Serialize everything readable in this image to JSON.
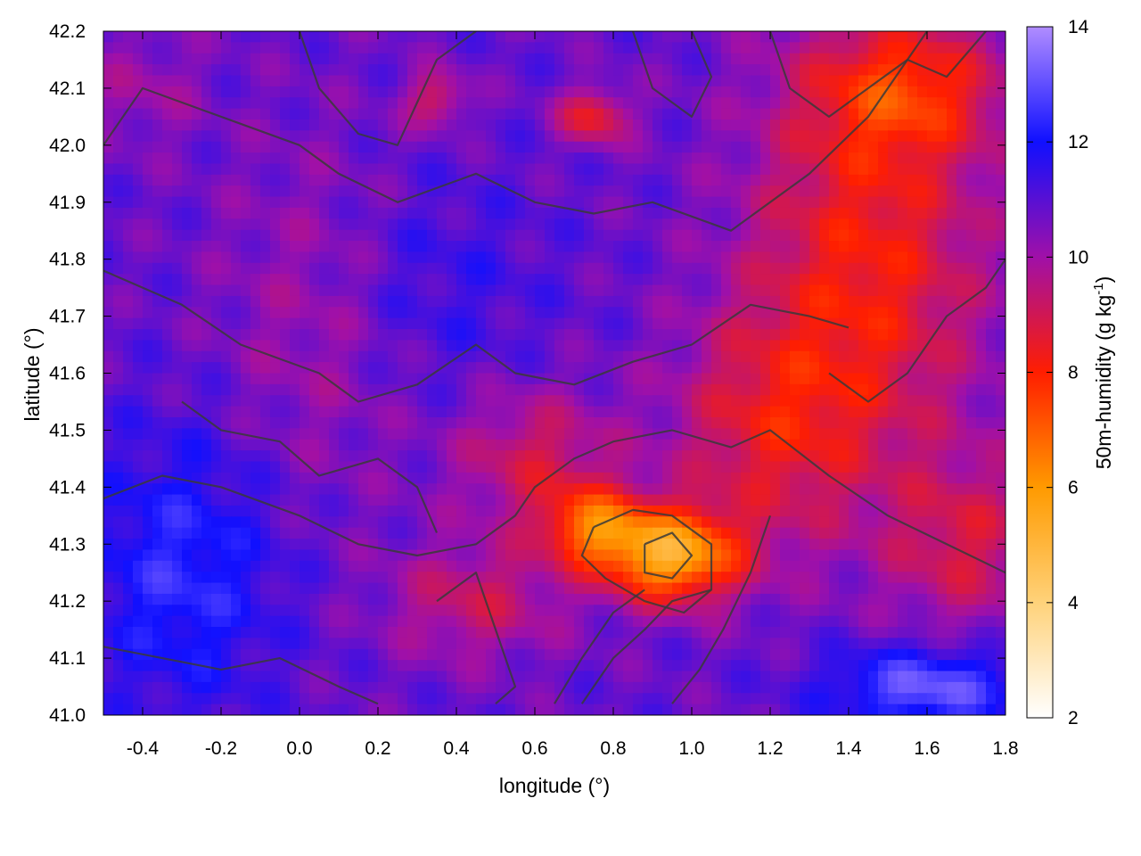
{
  "chart_data": {
    "type": "heatmap",
    "title": "",
    "xlabel": "longitude (°)",
    "ylabel": "latitude (°)",
    "xlim": [
      -0.5,
      1.8
    ],
    "ylim": [
      41.0,
      42.2
    ],
    "x_ticks": [
      -0.4,
      -0.2,
      0.0,
      0.2,
      0.4,
      0.6,
      0.8,
      1.0,
      1.2,
      1.4,
      1.6,
      1.8
    ],
    "x_tick_labels": [
      "-0.4",
      "-0.2",
      "0.0",
      "0.2",
      "0.4",
      "0.6",
      "0.8",
      "1.0",
      "1.2",
      "1.4",
      "1.6",
      "1.8"
    ],
    "y_ticks": [
      41.0,
      41.1,
      41.2,
      41.3,
      41.4,
      41.5,
      41.6,
      41.7,
      41.8,
      41.9,
      42.0,
      42.1,
      42.2
    ],
    "y_tick_labels": [
      "41.0",
      "41.1",
      "41.2",
      "41.3",
      "41.4",
      "41.5",
      "41.6",
      "41.7",
      "41.8",
      "41.9",
      "42.0",
      "42.1",
      "42.2"
    ],
    "colorbar": {
      "label_parts": [
        "50m-humidity (g kg",
        "-1",
        ")"
      ],
      "range": [
        2,
        14
      ],
      "ticks": [
        2,
        4,
        6,
        8,
        10,
        12,
        14
      ],
      "tick_labels": [
        "2",
        "4",
        "6",
        "8",
        "10",
        "12",
        "14"
      ],
      "palette": [
        {
          "v": 2,
          "color": "#ffffff"
        },
        {
          "v": 4,
          "color": "#ffd27a"
        },
        {
          "v": 6,
          "color": "#ff9a00"
        },
        {
          "v": 8,
          "color": "#ff1e00"
        },
        {
          "v": 10,
          "color": "#a010a8"
        },
        {
          "v": 12,
          "color": "#1010ff"
        },
        {
          "v": 14,
          "color": "#b08cff"
        }
      ]
    },
    "grid": false,
    "humidity_field": {
      "note_units": "g kg-1",
      "base": 10.8,
      "blobs": [
        {
          "lon": 1.45,
          "lat": 41.8,
          "amp": -2.6,
          "sx": 0.3,
          "sy": 0.35
        },
        {
          "lon": 1.55,
          "lat": 42.1,
          "amp": -2.4,
          "sx": 0.25,
          "sy": 0.12
        },
        {
          "lon": 1.2,
          "lat": 41.5,
          "amp": -2.0,
          "sx": 0.25,
          "sy": 0.2
        },
        {
          "lon": 0.95,
          "lat": 41.28,
          "amp": -5.2,
          "sx": 0.17,
          "sy": 0.08
        },
        {
          "lon": 0.75,
          "lat": 41.33,
          "amp": -3.4,
          "sx": 0.13,
          "sy": 0.07
        },
        {
          "lon": 0.6,
          "lat": 41.45,
          "amp": -1.8,
          "sx": 0.2,
          "sy": 0.12
        },
        {
          "lon": 0.45,
          "lat": 41.2,
          "amp": -1.6,
          "sx": 0.22,
          "sy": 0.1
        },
        {
          "lon": 0.75,
          "lat": 42.05,
          "amp": -2.4,
          "sx": 0.09,
          "sy": 0.05
        },
        {
          "lon": 0.35,
          "lat": 42.08,
          "amp": -1.8,
          "sx": 0.08,
          "sy": 0.05
        },
        {
          "lon": 1.7,
          "lat": 41.3,
          "amp": -1.8,
          "sx": 0.2,
          "sy": 0.15
        },
        {
          "lon": -0.3,
          "lat": 41.25,
          "amp": 1.6,
          "sx": 0.25,
          "sy": 0.25
        },
        {
          "lon": 1.6,
          "lat": 41.05,
          "amp": 2.4,
          "sx": 0.25,
          "sy": 0.07
        },
        {
          "lon": 0.3,
          "lat": 41.75,
          "amp": 0.8,
          "sx": 0.3,
          "sy": 0.2
        },
        {
          "lon": 0.05,
          "lat": 41.7,
          "amp": -1.0,
          "sx": 0.25,
          "sy": 0.3
        },
        {
          "lon": -0.4,
          "lat": 42.1,
          "amp": -0.8,
          "sx": 0.15,
          "sy": 0.1
        }
      ]
    },
    "contours": [
      [
        [
          -0.5,
          42.0
        ],
        [
          -0.4,
          42.1
        ],
        [
          -0.2,
          42.05
        ],
        [
          0.0,
          42.0
        ],
        [
          0.1,
          41.95
        ],
        [
          0.25,
          41.9
        ],
        [
          0.45,
          41.95
        ],
        [
          0.6,
          41.9
        ],
        [
          0.75,
          41.88
        ],
        [
          0.9,
          41.9
        ],
        [
          1.1,
          41.85
        ],
        [
          1.3,
          41.95
        ],
        [
          1.45,
          42.05
        ],
        [
          1.55,
          42.15
        ],
        [
          1.6,
          42.2
        ]
      ],
      [
        [
          -0.5,
          41.78
        ],
        [
          -0.3,
          41.72
        ],
        [
          -0.15,
          41.65
        ],
        [
          0.05,
          41.6
        ],
        [
          0.15,
          41.55
        ],
        [
          0.3,
          41.58
        ],
        [
          0.45,
          41.65
        ],
        [
          0.55,
          41.6
        ],
        [
          0.7,
          41.58
        ],
        [
          0.85,
          41.62
        ],
        [
          1.0,
          41.65
        ],
        [
          1.15,
          41.72
        ],
        [
          1.3,
          41.7
        ],
        [
          1.4,
          41.68
        ]
      ],
      [
        [
          -0.5,
          41.38
        ],
        [
          -0.35,
          41.42
        ],
        [
          -0.2,
          41.4
        ],
        [
          0.0,
          41.35
        ],
        [
          0.15,
          41.3
        ],
        [
          0.3,
          41.28
        ],
        [
          0.45,
          41.3
        ],
        [
          0.55,
          41.35
        ],
        [
          0.6,
          41.4
        ],
        [
          0.7,
          41.45
        ],
        [
          0.8,
          41.48
        ],
        [
          0.95,
          41.5
        ],
        [
          1.1,
          41.47
        ],
        [
          1.2,
          41.5
        ],
        [
          1.35,
          41.42
        ],
        [
          1.5,
          41.35
        ],
        [
          1.65,
          41.3
        ],
        [
          1.8,
          41.25
        ]
      ],
      [
        [
          -0.5,
          41.12
        ],
        [
          -0.35,
          41.1
        ],
        [
          -0.2,
          41.08
        ],
        [
          -0.05,
          41.1
        ],
        [
          0.1,
          41.05
        ],
        [
          0.2,
          41.02
        ]
      ],
      [
        [
          0.75,
          41.33
        ],
        [
          0.85,
          41.36
        ],
        [
          0.95,
          41.35
        ],
        [
          1.05,
          41.3
        ],
        [
          1.05,
          41.22
        ],
        [
          0.98,
          41.18
        ],
        [
          0.88,
          41.2
        ],
        [
          0.78,
          41.24
        ],
        [
          0.72,
          41.28
        ],
        [
          0.75,
          41.33
        ]
      ],
      [
        [
          0.88,
          41.3
        ],
        [
          0.95,
          41.32
        ],
        [
          1.0,
          41.28
        ],
        [
          0.95,
          41.24
        ],
        [
          0.88,
          41.25
        ],
        [
          0.88,
          41.3
        ]
      ],
      [
        [
          0.65,
          41.02
        ],
        [
          0.72,
          41.1
        ],
        [
          0.8,
          41.18
        ],
        [
          0.88,
          41.22
        ]
      ],
      [
        [
          0.72,
          41.02
        ],
        [
          0.8,
          41.1
        ],
        [
          0.88,
          41.15
        ],
        [
          0.95,
          41.2
        ],
        [
          1.05,
          41.22
        ]
      ],
      [
        [
          0.95,
          41.02
        ],
        [
          1.02,
          41.08
        ],
        [
          1.08,
          41.15
        ],
        [
          1.15,
          41.25
        ],
        [
          1.2,
          41.35
        ]
      ],
      [
        [
          0.0,
          42.2
        ],
        [
          0.05,
          42.1
        ],
        [
          0.15,
          42.02
        ],
        [
          0.25,
          42.0
        ],
        [
          0.35,
          42.15
        ],
        [
          0.45,
          42.2
        ]
      ],
      [
        [
          0.85,
          42.2
        ],
        [
          0.9,
          42.1
        ],
        [
          1.0,
          42.05
        ],
        [
          1.05,
          42.12
        ],
        [
          1.0,
          42.2
        ]
      ],
      [
        [
          1.2,
          42.2
        ],
        [
          1.25,
          42.1
        ],
        [
          1.35,
          42.05
        ],
        [
          1.45,
          42.1
        ],
        [
          1.55,
          42.15
        ],
        [
          1.65,
          42.12
        ],
        [
          1.75,
          42.2
        ]
      ],
      [
        [
          -0.3,
          41.55
        ],
        [
          -0.2,
          41.5
        ],
        [
          -0.05,
          41.48
        ],
        [
          0.05,
          41.42
        ],
        [
          0.2,
          41.45
        ],
        [
          0.3,
          41.4
        ],
        [
          0.35,
          41.32
        ]
      ],
      [
        [
          0.35,
          41.2
        ],
        [
          0.45,
          41.25
        ],
        [
          0.5,
          41.15
        ],
        [
          0.55,
          41.05
        ],
        [
          0.5,
          41.02
        ]
      ],
      [
        [
          1.35,
          41.6
        ],
        [
          1.45,
          41.55
        ],
        [
          1.55,
          41.6
        ],
        [
          1.65,
          41.7
        ],
        [
          1.75,
          41.75
        ],
        [
          1.8,
          41.8
        ]
      ]
    ]
  }
}
